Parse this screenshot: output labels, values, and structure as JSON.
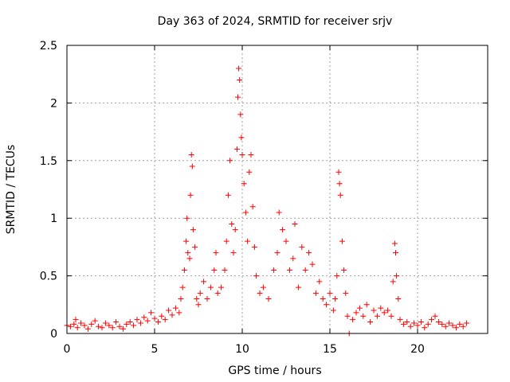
{
  "chart_data": {
    "type": "scatter",
    "title": "Day 363 of 2024, SRMTID for receiver srjv",
    "xlabel": "GPS time / hours",
    "ylabel": "SRMTID / TECUs",
    "xlim": [
      0,
      24
    ],
    "ylim": [
      0,
      2.5
    ],
    "xticks": [
      0,
      5,
      10,
      15,
      20
    ],
    "xtick_labels": [
      "0",
      "5",
      "10",
      "15",
      "20"
    ],
    "yticks": [
      0,
      0.5,
      1,
      1.5,
      2,
      2.5
    ],
    "ytick_labels": [
      "0",
      "0.5",
      "1",
      "1.5",
      "2",
      "2.5"
    ],
    "grid": true,
    "marker": "+",
    "color": "#ff0000",
    "series": [
      {
        "name": "srjv",
        "points": [
          [
            0.0,
            0.07
          ],
          [
            0.2,
            0.06
          ],
          [
            0.4,
            0.08
          ],
          [
            0.5,
            0.12
          ],
          [
            0.6,
            0.05
          ],
          [
            0.8,
            0.09
          ],
          [
            1.0,
            0.07
          ],
          [
            1.2,
            0.04
          ],
          [
            1.4,
            0.08
          ],
          [
            1.6,
            0.11
          ],
          [
            1.8,
            0.06
          ],
          [
            2.0,
            0.05
          ],
          [
            2.2,
            0.09
          ],
          [
            2.4,
            0.07
          ],
          [
            2.6,
            0.05
          ],
          [
            2.8,
            0.1
          ],
          [
            3.0,
            0.06
          ],
          [
            3.2,
            0.04
          ],
          [
            3.4,
            0.08
          ],
          [
            3.6,
            0.1
          ],
          [
            3.8,
            0.07
          ],
          [
            4.0,
            0.12
          ],
          [
            4.2,
            0.09
          ],
          [
            4.4,
            0.14
          ],
          [
            4.6,
            0.11
          ],
          [
            4.8,
            0.18
          ],
          [
            5.0,
            0.13
          ],
          [
            5.2,
            0.1
          ],
          [
            5.4,
            0.15
          ],
          [
            5.6,
            0.12
          ],
          [
            5.8,
            0.2
          ],
          [
            6.0,
            0.16
          ],
          [
            6.2,
            0.22
          ],
          [
            6.4,
            0.18
          ],
          [
            6.5,
            0.3
          ],
          [
            6.6,
            0.4
          ],
          [
            6.7,
            0.55
          ],
          [
            6.8,
            0.8
          ],
          [
            6.85,
            1.0
          ],
          [
            6.9,
            0.7
          ],
          [
            7.0,
            0.65
          ],
          [
            7.05,
            1.2
          ],
          [
            7.1,
            1.55
          ],
          [
            7.15,
            1.45
          ],
          [
            7.2,
            0.9
          ],
          [
            7.3,
            0.75
          ],
          [
            7.4,
            0.3
          ],
          [
            7.5,
            0.25
          ],
          [
            7.6,
            0.35
          ],
          [
            7.8,
            0.45
          ],
          [
            8.0,
            0.3
          ],
          [
            8.2,
            0.4
          ],
          [
            8.4,
            0.55
          ],
          [
            8.5,
            0.7
          ],
          [
            8.6,
            0.35
          ],
          [
            8.8,
            0.4
          ],
          [
            9.0,
            0.55
          ],
          [
            9.1,
            0.8
          ],
          [
            9.2,
            1.2
          ],
          [
            9.3,
            1.5
          ],
          [
            9.4,
            0.95
          ],
          [
            9.5,
            0.7
          ],
          [
            9.6,
            0.9
          ],
          [
            9.7,
            1.6
          ],
          [
            9.75,
            2.05
          ],
          [
            9.8,
            2.3
          ],
          [
            9.85,
            2.2
          ],
          [
            9.9,
            1.9
          ],
          [
            9.95,
            1.7
          ],
          [
            10.0,
            1.55
          ],
          [
            10.1,
            1.3
          ],
          [
            10.2,
            1.05
          ],
          [
            10.3,
            0.8
          ],
          [
            10.4,
            1.4
          ],
          [
            10.5,
            1.55
          ],
          [
            10.6,
            1.1
          ],
          [
            10.7,
            0.75
          ],
          [
            10.8,
            0.5
          ],
          [
            11.0,
            0.35
          ],
          [
            11.2,
            0.4
          ],
          [
            11.5,
            0.3
          ],
          [
            11.8,
            0.55
          ],
          [
            12.0,
            0.7
          ],
          [
            12.1,
            1.05
          ],
          [
            12.3,
            0.9
          ],
          [
            12.5,
            0.8
          ],
          [
            12.7,
            0.55
          ],
          [
            12.9,
            0.65
          ],
          [
            13.0,
            0.95
          ],
          [
            13.2,
            0.4
          ],
          [
            13.4,
            0.75
          ],
          [
            13.6,
            0.55
          ],
          [
            13.8,
            0.7
          ],
          [
            14.0,
            0.6
          ],
          [
            14.2,
            0.35
          ],
          [
            14.4,
            0.45
          ],
          [
            14.6,
            0.3
          ],
          [
            14.8,
            0.25
          ],
          [
            15.0,
            0.35
          ],
          [
            15.2,
            0.2
          ],
          [
            15.3,
            0.3
          ],
          [
            15.4,
            0.5
          ],
          [
            15.5,
            1.4
          ],
          [
            15.55,
            1.3
          ],
          [
            15.6,
            1.2
          ],
          [
            15.7,
            0.8
          ],
          [
            15.8,
            0.55
          ],
          [
            15.9,
            0.35
          ],
          [
            16.0,
            0.15
          ],
          [
            16.1,
            0.0
          ],
          [
            16.3,
            0.12
          ],
          [
            16.5,
            0.18
          ],
          [
            16.7,
            0.22
          ],
          [
            16.9,
            0.15
          ],
          [
            17.1,
            0.25
          ],
          [
            17.3,
            0.1
          ],
          [
            17.5,
            0.2
          ],
          [
            17.7,
            0.15
          ],
          [
            17.9,
            0.22
          ],
          [
            18.1,
            0.18
          ],
          [
            18.3,
            0.2
          ],
          [
            18.5,
            0.15
          ],
          [
            18.6,
            0.45
          ],
          [
            18.7,
            0.78
          ],
          [
            18.75,
            0.7
          ],
          [
            18.8,
            0.5
          ],
          [
            18.9,
            0.3
          ],
          [
            19.0,
            0.12
          ],
          [
            19.2,
            0.08
          ],
          [
            19.4,
            0.1
          ],
          [
            19.6,
            0.06
          ],
          [
            19.8,
            0.09
          ],
          [
            20.0,
            0.07
          ],
          [
            20.2,
            0.1
          ],
          [
            20.4,
            0.05
          ],
          [
            20.6,
            0.08
          ],
          [
            20.8,
            0.12
          ],
          [
            21.0,
            0.15
          ],
          [
            21.2,
            0.1
          ],
          [
            21.4,
            0.08
          ],
          [
            21.6,
            0.06
          ],
          [
            21.8,
            0.09
          ],
          [
            22.0,
            0.07
          ],
          [
            22.2,
            0.05
          ],
          [
            22.4,
            0.08
          ],
          [
            22.6,
            0.06
          ],
          [
            22.8,
            0.09
          ]
        ]
      }
    ]
  }
}
